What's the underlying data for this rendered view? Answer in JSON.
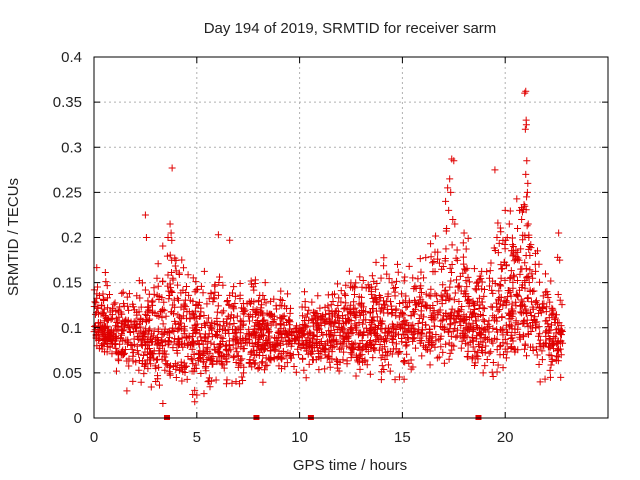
{
  "chart_data": {
    "type": "scatter",
    "title": "Day 194 of 2019, SRMTID for receiver sarm",
    "xlabel": "GPS time / hours",
    "ylabel": "SRMTID / TECUs",
    "xlim": [
      0,
      25
    ],
    "ylim": [
      0,
      0.4
    ],
    "grid": true,
    "marker": "plus",
    "color": "#e00000",
    "x_ticks": [
      0,
      5,
      10,
      15,
      20
    ],
    "x_tick_labels": [
      "0",
      "5",
      "10",
      "15",
      "20"
    ],
    "y_ticks": [
      0,
      0.05,
      0.1,
      0.15,
      0.2,
      0.25,
      0.3,
      0.35,
      0.4
    ],
    "y_tick_labels": [
      "0",
      "0.05",
      "0.1",
      "0.15",
      "0.2",
      "0.25",
      "0.3",
      "0.35",
      "0.4"
    ],
    "gap_marks_x": [
      3.55,
      7.9,
      10.55,
      18.7
    ],
    "noise_seed": 19420,
    "noise_count": 2400,
    "envelope": [
      {
        "x": 0.0,
        "low": 0.08,
        "mid": 0.105,
        "high": 0.16
      },
      {
        "x": 1.0,
        "low": 0.06,
        "mid": 0.095,
        "high": 0.15
      },
      {
        "x": 2.0,
        "low": 0.04,
        "mid": 0.09,
        "high": 0.14
      },
      {
        "x": 3.5,
        "low": 0.04,
        "mid": 0.09,
        "high": 0.2
      },
      {
        "x": 5.0,
        "low": 0.03,
        "mid": 0.09,
        "high": 0.16
      },
      {
        "x": 7.0,
        "low": 0.04,
        "mid": 0.09,
        "high": 0.15
      },
      {
        "x": 9.0,
        "low": 0.05,
        "mid": 0.09,
        "high": 0.14
      },
      {
        "x": 11.0,
        "low": 0.05,
        "mid": 0.09,
        "high": 0.13
      },
      {
        "x": 13.0,
        "low": 0.05,
        "mid": 0.1,
        "high": 0.17
      },
      {
        "x": 15.0,
        "low": 0.05,
        "mid": 0.1,
        "high": 0.17
      },
      {
        "x": 16.5,
        "low": 0.06,
        "mid": 0.11,
        "high": 0.19
      },
      {
        "x": 17.5,
        "low": 0.07,
        "mid": 0.12,
        "high": 0.22
      },
      {
        "x": 19.0,
        "low": 0.05,
        "mid": 0.1,
        "high": 0.18
      },
      {
        "x": 20.0,
        "low": 0.06,
        "mid": 0.12,
        "high": 0.22
      },
      {
        "x": 21.0,
        "low": 0.06,
        "mid": 0.13,
        "high": 0.24
      },
      {
        "x": 22.0,
        "low": 0.05,
        "mid": 0.09,
        "high": 0.15
      },
      {
        "x": 22.8,
        "low": 0.06,
        "mid": 0.09,
        "high": 0.13
      }
    ],
    "outliers": [
      {
        "x": 3.8,
        "y": 0.277
      },
      {
        "x": 3.6,
        "y": 0.2
      },
      {
        "x": 3.7,
        "y": 0.215
      },
      {
        "x": 3.75,
        "y": 0.205
      },
      {
        "x": 2.5,
        "y": 0.225
      },
      {
        "x": 2.55,
        "y": 0.2
      },
      {
        "x": 6.05,
        "y": 0.203
      },
      {
        "x": 6.6,
        "y": 0.197
      },
      {
        "x": 3.35,
        "y": 0.016
      },
      {
        "x": 4.9,
        "y": 0.018
      },
      {
        "x": 4.8,
        "y": 0.026
      },
      {
        "x": 17.2,
        "y": 0.255
      },
      {
        "x": 17.3,
        "y": 0.265
      },
      {
        "x": 17.4,
        "y": 0.287
      },
      {
        "x": 17.5,
        "y": 0.285
      },
      {
        "x": 17.1,
        "y": 0.24
      },
      {
        "x": 17.25,
        "y": 0.23
      },
      {
        "x": 17.35,
        "y": 0.25
      },
      {
        "x": 17.45,
        "y": 0.22
      },
      {
        "x": 17.55,
        "y": 0.215
      },
      {
        "x": 17.15,
        "y": 0.21
      },
      {
        "x": 18.0,
        "y": 0.205
      },
      {
        "x": 18.2,
        "y": 0.199
      },
      {
        "x": 19.5,
        "y": 0.275
      },
      {
        "x": 19.6,
        "y": 0.2
      },
      {
        "x": 20.0,
        "y": 0.23
      },
      {
        "x": 20.1,
        "y": 0.2
      },
      {
        "x": 20.2,
        "y": 0.215
      },
      {
        "x": 20.4,
        "y": 0.19
      },
      {
        "x": 20.7,
        "y": 0.23
      },
      {
        "x": 20.8,
        "y": 0.22
      },
      {
        "x": 20.6,
        "y": 0.21
      },
      {
        "x": 20.95,
        "y": 0.36
      },
      {
        "x": 21.0,
        "y": 0.362
      },
      {
        "x": 21.02,
        "y": 0.33
      },
      {
        "x": 20.98,
        "y": 0.32
      },
      {
        "x": 21.03,
        "y": 0.325
      },
      {
        "x": 21.05,
        "y": 0.285
      },
      {
        "x": 21.0,
        "y": 0.27
      },
      {
        "x": 21.1,
        "y": 0.26
      },
      {
        "x": 21.08,
        "y": 0.25
      },
      {
        "x": 21.04,
        "y": 0.245
      },
      {
        "x": 21.12,
        "y": 0.215
      },
      {
        "x": 21.15,
        "y": 0.2
      },
      {
        "x": 21.18,
        "y": 0.19
      },
      {
        "x": 21.2,
        "y": 0.18
      },
      {
        "x": 22.6,
        "y": 0.205
      },
      {
        "x": 22.55,
        "y": 0.178
      },
      {
        "x": 22.65,
        "y": 0.175
      },
      {
        "x": 21.7,
        "y": 0.04
      },
      {
        "x": 22.2,
        "y": 0.045
      },
      {
        "x": 22.7,
        "y": 0.045
      },
      {
        "x": 1.6,
        "y": 0.03
      }
    ]
  }
}
